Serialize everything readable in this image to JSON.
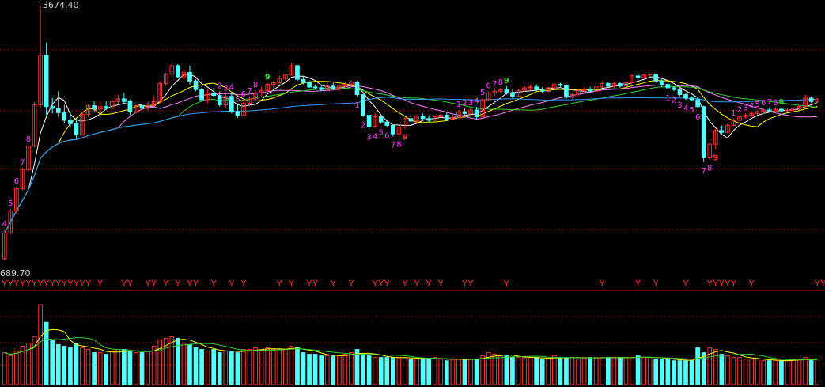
{
  "chart_data": {
    "type": "candlestick",
    "price_high_label": "3674.40",
    "price_low_label": "689.70",
    "ylim": [
      689.7,
      3674.4
    ],
    "signal_label": "Y",
    "colors": {
      "up": "#ff3232",
      "down": "#54ffff",
      "ma5": "#ffffff",
      "ma10": "#ffff00",
      "ma20": "#ff80ff",
      "ma30": "#33cc33",
      "ma60": "#3399ff",
      "signal": "#ff3232",
      "seq_up": "#ff40ff",
      "seq_nine": "#33cc33",
      "seq_nine_alt": "#ff3232",
      "grid": "#8b0000"
    },
    "candles": [
      [
        720,
        1060,
        700,
        1020
      ],
      [
        1020,
        1300,
        1000,
        1280
      ],
      [
        1280,
        1560,
        1260,
        1540
      ],
      [
        1540,
        1780,
        1520,
        1760
      ],
      [
        1760,
        2050,
        1740,
        2040
      ],
      [
        2040,
        2550,
        2020,
        2520
      ],
      [
        2520,
        3674.4,
        2480,
        3100
      ],
      [
        3100,
        3250,
        2400,
        2500
      ],
      [
        2500,
        2600,
        2420,
        2480
      ],
      [
        2480,
        2680,
        2380,
        2430
      ],
      [
        2430,
        2520,
        2300,
        2340
      ],
      [
        2340,
        2440,
        2250,
        2300
      ],
      [
        2300,
        2360,
        2120,
        2170
      ],
      [
        2170,
        2430,
        2160,
        2410
      ],
      [
        2410,
        2530,
        2380,
        2510
      ],
      [
        2510,
        2560,
        2430,
        2470
      ],
      [
        2470,
        2560,
        2420,
        2500
      ],
      [
        2500,
        2560,
        2460,
        2480
      ],
      [
        2480,
        2600,
        2470,
        2560
      ],
      [
        2560,
        2640,
        2520,
        2590
      ],
      [
        2590,
        2660,
        2540,
        2560
      ],
      [
        2560,
        2580,
        2400,
        2440
      ],
      [
        2440,
        2530,
        2420,
        2510
      ],
      [
        2510,
        2560,
        2460,
        2480
      ],
      [
        2480,
        2560,
        2450,
        2510
      ],
      [
        2510,
        2620,
        2500,
        2560
      ],
      [
        2560,
        2800,
        2540,
        2770
      ],
      [
        2770,
        2900,
        2740,
        2880
      ],
      [
        2880,
        3010,
        2850,
        2980
      ],
      [
        2980,
        3000,
        2830,
        2850
      ],
      [
        2850,
        2930,
        2810,
        2900
      ],
      [
        2900,
        2980,
        2760,
        2800
      ],
      [
        2800,
        2820,
        2680,
        2700
      ],
      [
        2700,
        2720,
        2560,
        2580
      ],
      [
        2580,
        2700,
        2540,
        2660
      ],
      [
        2660,
        2720,
        2620,
        2630
      ],
      [
        2630,
        2680,
        2500,
        2520
      ],
      [
        2520,
        2650,
        2490,
        2620
      ],
      [
        2620,
        2660,
        2420,
        2440
      ],
      [
        2440,
        2520,
        2370,
        2400
      ],
      [
        2400,
        2580,
        2380,
        2540
      ],
      [
        2540,
        2620,
        2500,
        2590
      ],
      [
        2590,
        2690,
        2570,
        2660
      ],
      [
        2660,
        2730,
        2620,
        2690
      ],
      [
        2690,
        2780,
        2670,
        2760
      ],
      [
        2760,
        2800,
        2720,
        2780
      ],
      [
        2780,
        2860,
        2760,
        2830
      ],
      [
        2830,
        2880,
        2800,
        2870
      ],
      [
        2870,
        3010,
        2860,
        2980
      ],
      [
        2980,
        2990,
        2800,
        2820
      ],
      [
        2820,
        2860,
        2760,
        2780
      ],
      [
        2780,
        2800,
        2720,
        2730
      ],
      [
        2730,
        2760,
        2700,
        2720
      ],
      [
        2720,
        2760,
        2680,
        2700
      ],
      [
        2700,
        2780,
        2680,
        2740
      ],
      [
        2740,
        2780,
        2700,
        2710
      ],
      [
        2710,
        2760,
        2680,
        2740
      ],
      [
        2740,
        2790,
        2720,
        2760
      ],
      [
        2760,
        2810,
        2730,
        2790
      ],
      [
        2790,
        2800,
        2620,
        2640
      ],
      [
        2640,
        2650,
        2380,
        2400
      ],
      [
        2400,
        2460,
        2240,
        2270
      ],
      [
        2270,
        2420,
        2250,
        2380
      ],
      [
        2380,
        2400,
        2300,
        2320
      ],
      [
        2320,
        2350,
        2260,
        2280
      ],
      [
        2280,
        2290,
        2150,
        2180
      ],
      [
        2180,
        2280,
        2160,
        2260
      ],
      [
        2260,
        2380,
        2240,
        2360
      ],
      [
        2360,
        2400,
        2300,
        2330
      ],
      [
        2330,
        2410,
        2310,
        2390
      ],
      [
        2390,
        2420,
        2340,
        2360
      ],
      [
        2360,
        2400,
        2320,
        2340
      ],
      [
        2340,
        2390,
        2320,
        2380
      ],
      [
        2380,
        2420,
        2360,
        2400
      ],
      [
        2400,
        2430,
        2330,
        2350
      ],
      [
        2350,
        2400,
        2340,
        2370
      ],
      [
        2370,
        2460,
        2360,
        2440
      ],
      [
        2440,
        2480,
        2400,
        2420
      ],
      [
        2420,
        2480,
        2390,
        2460
      ],
      [
        2460,
        2500,
        2360,
        2380
      ],
      [
        2380,
        2600,
        2370,
        2580
      ],
      [
        2580,
        2680,
        2570,
        2660
      ],
      [
        2660,
        2700,
        2620,
        2680
      ],
      [
        2680,
        2720,
        2650,
        2700
      ],
      [
        2700,
        2740,
        2640,
        2660
      ],
      [
        2660,
        2700,
        2600,
        2620
      ],
      [
        2620,
        2700,
        2610,
        2690
      ],
      [
        2690,
        2740,
        2670,
        2720
      ],
      [
        2720,
        2760,
        2690,
        2730
      ],
      [
        2730,
        2760,
        2680,
        2700
      ],
      [
        2700,
        2730,
        2660,
        2680
      ],
      [
        2680,
        2730,
        2660,
        2720
      ],
      [
        2720,
        2770,
        2700,
        2760
      ],
      [
        2760,
        2780,
        2730,
        2750
      ],
      [
        2750,
        2760,
        2590,
        2610
      ],
      [
        2610,
        2660,
        2590,
        2640
      ],
      [
        2640,
        2700,
        2620,
        2690
      ],
      [
        2690,
        2720,
        2660,
        2700
      ],
      [
        2700,
        2730,
        2670,
        2680
      ],
      [
        2680,
        2740,
        2670,
        2730
      ],
      [
        2730,
        2800,
        2720,
        2770
      ],
      [
        2770,
        2790,
        2730,
        2740
      ],
      [
        2740,
        2790,
        2720,
        2770
      ],
      [
        2770,
        2790,
        2720,
        2740
      ],
      [
        2740,
        2800,
        2730,
        2780
      ],
      [
        2780,
        2880,
        2770,
        2860
      ],
      [
        2860,
        2900,
        2820,
        2840
      ],
      [
        2840,
        2880,
        2820,
        2870
      ],
      [
        2870,
        2890,
        2850,
        2880
      ],
      [
        2880,
        2890,
        2780,
        2800
      ],
      [
        2800,
        2820,
        2730,
        2760
      ],
      [
        2760,
        2780,
        2700,
        2720
      ],
      [
        2720,
        2740,
        2680,
        2700
      ],
      [
        2700,
        2730,
        2620,
        2640
      ],
      [
        2640,
        2660,
        2580,
        2600
      ],
      [
        2600,
        2620,
        2560,
        2580
      ],
      [
        2580,
        2610,
        2480,
        2500
      ],
      [
        2500,
        2510,
        1850,
        1900
      ],
      [
        1900,
        2080,
        1880,
        2060
      ],
      [
        2060,
        2240,
        2000,
        2220
      ],
      [
        2220,
        2280,
        2180,
        2200
      ],
      [
        2200,
        2300,
        2190,
        2280
      ],
      [
        2280,
        2360,
        2270,
        2340
      ],
      [
        2340,
        2400,
        2330,
        2380
      ],
      [
        2380,
        2420,
        2360,
        2400
      ],
      [
        2400,
        2440,
        2380,
        2420
      ],
      [
        2420,
        2460,
        2400,
        2440
      ],
      [
        2440,
        2480,
        2420,
        2460
      ],
      [
        2460,
        2490,
        2430,
        2450
      ],
      [
        2450,
        2480,
        2430,
        2470
      ],
      [
        2470,
        2490,
        2440,
        2450
      ],
      [
        2450,
        2480,
        2430,
        2460
      ],
      [
        2460,
        2500,
        2440,
        2480
      ],
      [
        2480,
        2520,
        2460,
        2500
      ],
      [
        2500,
        2640,
        2490,
        2600
      ],
      [
        2600,
        2620,
        2540,
        2560
      ],
      [
        2560,
        2600,
        2540,
        2590
      ]
    ],
    "volumes": [
      40,
      36,
      42,
      48,
      52,
      60,
      100,
      78,
      55,
      50,
      48,
      46,
      52,
      46,
      44,
      40,
      40,
      38,
      42,
      44,
      44,
      42,
      40,
      40,
      42,
      48,
      56,
      58,
      60,
      58,
      52,
      50,
      46,
      44,
      42,
      44,
      40,
      42,
      42,
      40,
      44,
      44,
      46,
      44,
      46,
      44,
      44,
      44,
      48,
      46,
      40,
      38,
      38,
      36,
      36,
      36,
      36,
      38,
      40,
      44,
      38,
      36,
      34,
      34,
      34,
      34,
      34,
      34,
      32,
      32,
      32,
      32,
      34,
      32,
      30,
      32,
      32,
      32,
      32,
      32,
      36,
      40,
      38,
      36,
      36,
      34,
      34,
      34,
      34,
      34,
      32,
      32,
      36,
      34,
      34,
      34,
      32,
      34,
      34,
      34,
      34,
      34,
      34,
      34,
      34,
      34,
      36,
      34,
      34,
      32,
      32,
      32,
      30,
      30,
      30,
      30,
      46,
      40,
      46,
      44,
      38,
      36,
      34,
      34,
      32,
      32,
      32,
      30,
      30,
      30,
      30,
      30,
      32,
      32,
      34,
      32,
      32
    ],
    "signal_indices": [
      0,
      1,
      2,
      3,
      4,
      5,
      6,
      7,
      8,
      9,
      10,
      11,
      12,
      13,
      14,
      16,
      20,
      21,
      24,
      25,
      27,
      29,
      31,
      32,
      35,
      38,
      40,
      46,
      48,
      51,
      52,
      55,
      58,
      62,
      63,
      64,
      67,
      69,
      71,
      73,
      77,
      78,
      84,
      100,
      106,
      109,
      114,
      118,
      119,
      120,
      121,
      122,
      125,
      136,
      137
    ],
    "seq_labels": [
      {
        "i": 0,
        "t": "4"
      },
      {
        "i": 1,
        "t": "5"
      },
      {
        "i": 2,
        "t": "6"
      },
      {
        "i": 3,
        "t": "7"
      },
      {
        "i": 4,
        "t": "8"
      },
      {
        "i": 36,
        "t": "2"
      },
      {
        "i": 37,
        "t": "3"
      },
      {
        "i": 38,
        "t": "4"
      },
      {
        "i": 39,
        "t": "5"
      },
      {
        "i": 40,
        "t": "6"
      },
      {
        "i": 41,
        "t": "7"
      },
      {
        "i": 42,
        "t": "8"
      },
      {
        "i": 44,
        "t": "9"
      },
      {
        "i": 59,
        "t": "1"
      },
      {
        "i": 60,
        "t": "2"
      },
      {
        "i": 61,
        "t": "3"
      },
      {
        "i": 62,
        "t": "4"
      },
      {
        "i": 63,
        "t": "5"
      },
      {
        "i": 64,
        "t": "6"
      },
      {
        "i": 65,
        "t": "7"
      },
      {
        "i": 66,
        "t": "8"
      },
      {
        "i": 67,
        "t": "9"
      },
      {
        "i": 76,
        "t": "1"
      },
      {
        "i": 77,
        "t": "2"
      },
      {
        "i": 78,
        "t": "3"
      },
      {
        "i": 79,
        "t": "4"
      },
      {
        "i": 80,
        "t": "5"
      },
      {
        "i": 81,
        "t": "6"
      },
      {
        "i": 82,
        "t": "7"
      },
      {
        "i": 83,
        "t": "8"
      },
      {
        "i": 84,
        "t": "9"
      },
      {
        "i": 111,
        "t": "1"
      },
      {
        "i": 112,
        "t": "2"
      },
      {
        "i": 113,
        "t": "3"
      },
      {
        "i": 114,
        "t": "4"
      },
      {
        "i": 115,
        "t": "5"
      },
      {
        "i": 116,
        "t": "6"
      },
      {
        "i": 117,
        "t": "7"
      },
      {
        "i": 118,
        "t": "8"
      },
      {
        "i": 119,
        "t": "9"
      },
      {
        "i": 122,
        "t": "1"
      },
      {
        "i": 123,
        "t": "2"
      },
      {
        "i": 124,
        "t": "3"
      },
      {
        "i": 125,
        "t": "4"
      },
      {
        "i": 126,
        "t": "5"
      },
      {
        "i": 127,
        "t": "6"
      },
      {
        "i": 128,
        "t": "7"
      },
      {
        "i": 129,
        "t": "8"
      },
      {
        "i": 130,
        "t": "9"
      }
    ],
    "ma_periods": [
      5,
      10,
      20,
      30,
      60
    ]
  }
}
